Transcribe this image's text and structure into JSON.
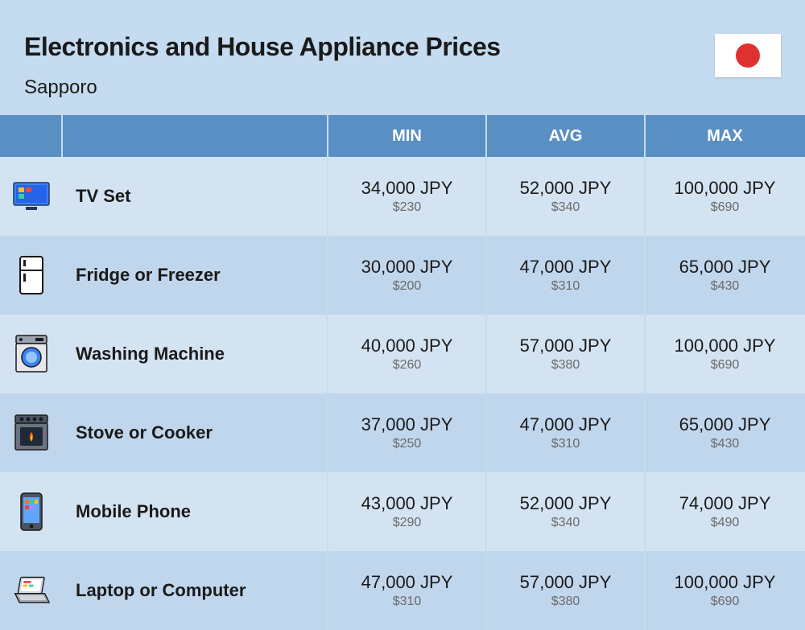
{
  "title": "Electronics and House Appliance Prices",
  "subtitle": "Sapporo",
  "flag": {
    "bg": "#ffffff",
    "circle": "#e03131"
  },
  "colors": {
    "page_bg": "#c5dbef",
    "header_bg": "#5a8fc4",
    "header_text": "#ffffff",
    "row_odd": "#d4e3f2",
    "row_even": "#c0d6ec",
    "text_main": "#1a1a1a",
    "text_sub": "#6a6a6a"
  },
  "columns": [
    "MIN",
    "AVG",
    "MAX"
  ],
  "rows": [
    {
      "icon": "tv",
      "name": "TV Set",
      "min": {
        "jpy": "34,000 JPY",
        "usd": "$230"
      },
      "avg": {
        "jpy": "52,000 JPY",
        "usd": "$340"
      },
      "max": {
        "jpy": "100,000 JPY",
        "usd": "$690"
      }
    },
    {
      "icon": "fridge",
      "name": "Fridge or Freezer",
      "min": {
        "jpy": "30,000 JPY",
        "usd": "$200"
      },
      "avg": {
        "jpy": "47,000 JPY",
        "usd": "$310"
      },
      "max": {
        "jpy": "65,000 JPY",
        "usd": "$430"
      }
    },
    {
      "icon": "washer",
      "name": "Washing Machine",
      "min": {
        "jpy": "40,000 JPY",
        "usd": "$260"
      },
      "avg": {
        "jpy": "57,000 JPY",
        "usd": "$380"
      },
      "max": {
        "jpy": "100,000 JPY",
        "usd": "$690"
      }
    },
    {
      "icon": "stove",
      "name": "Stove or Cooker",
      "min": {
        "jpy": "37,000 JPY",
        "usd": "$250"
      },
      "avg": {
        "jpy": "47,000 JPY",
        "usd": "$310"
      },
      "max": {
        "jpy": "65,000 JPY",
        "usd": "$430"
      }
    },
    {
      "icon": "phone",
      "name": "Mobile Phone",
      "min": {
        "jpy": "43,000 JPY",
        "usd": "$290"
      },
      "avg": {
        "jpy": "52,000 JPY",
        "usd": "$340"
      },
      "max": {
        "jpy": "74,000 JPY",
        "usd": "$490"
      }
    },
    {
      "icon": "laptop",
      "name": "Laptop or Computer",
      "min": {
        "jpy": "47,000 JPY",
        "usd": "$310"
      },
      "avg": {
        "jpy": "57,000 JPY",
        "usd": "$380"
      },
      "max": {
        "jpy": "100,000 JPY",
        "usd": "$690"
      }
    }
  ]
}
